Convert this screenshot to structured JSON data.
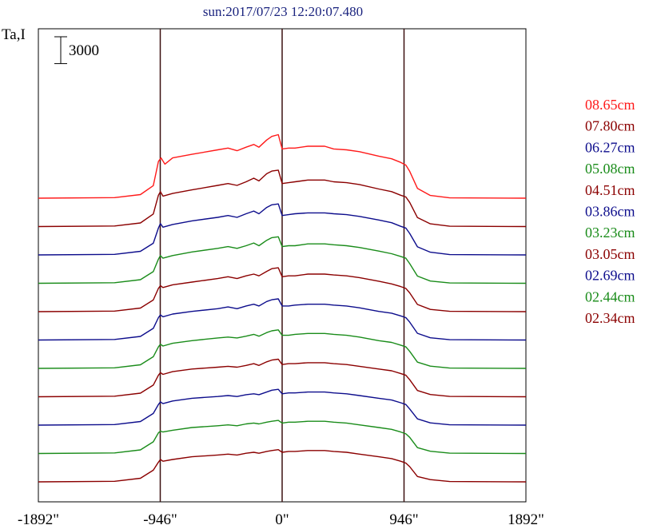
{
  "chart_data": {
    "type": "line",
    "title": "sun:2017/07/23 12:20:07.480",
    "ylabel": "Ta,I",
    "scale_bar_label": "3000",
    "scale_bar_value": 3000,
    "xlim": [
      -1892,
      1892
    ],
    "x_ticks": [
      {
        "value": -1892,
        "label": "-1892\""
      },
      {
        "value": -946,
        "label": "-946\""
      },
      {
        "value": 0,
        "label": "0\""
      },
      {
        "value": 946,
        "label": "946\""
      },
      {
        "value": 1892,
        "label": "1892\""
      }
    ],
    "vertical_lines": [
      -946,
      0,
      946
    ],
    "limb_x": 946,
    "grid": false,
    "legend_position": "right",
    "series": [
      {
        "name": "08.65cm",
        "color": "#ff1a1a",
        "baseline": 0,
        "profile_x": [
          -1892,
          -1300,
          -1100,
          -1000,
          -960,
          -940,
          -910,
          -850,
          -700,
          -500,
          -420,
          -350,
          -280,
          -220,
          -180,
          -120,
          -80,
          -30,
          0,
          50,
          100,
          200,
          330,
          400,
          500,
          600,
          750,
          850,
          920,
          960,
          990,
          1050,
          1150,
          1300,
          1892
        ],
        "profile_y": [
          0,
          60,
          400,
          1400,
          4100,
          4500,
          3800,
          4500,
          4900,
          5400,
          5600,
          5300,
          5700,
          6000,
          5700,
          6500,
          6900,
          7100,
          5500,
          5600,
          5600,
          5800,
          5800,
          5500,
          5400,
          5200,
          4700,
          4400,
          4000,
          3700,
          3000,
          1100,
          300,
          40,
          0
        ]
      },
      {
        "name": "07.80cm",
        "color": "#8b0000",
        "baseline": 1,
        "profile_x": [
          -1892,
          -1300,
          -1100,
          -1000,
          -960,
          -945,
          -925,
          -850,
          -700,
          -500,
          -420,
          -350,
          -280,
          -220,
          -180,
          -120,
          -80,
          -30,
          0,
          50,
          100,
          200,
          330,
          400,
          500,
          600,
          750,
          850,
          920,
          960,
          990,
          1050,
          1150,
          1300,
          1892
        ],
        "profile_y": [
          0,
          60,
          400,
          1400,
          3500,
          3900,
          3400,
          3700,
          4100,
          4600,
          4800,
          4600,
          5000,
          5400,
          5100,
          5900,
          6200,
          6300,
          4800,
          4900,
          5000,
          5200,
          5200,
          5000,
          4900,
          4700,
          4200,
          3900,
          3500,
          3300,
          2700,
          1000,
          300,
          40,
          0
        ]
      },
      {
        "name": "06.27cm",
        "color": "#0d0d8c",
        "baseline": 2,
        "profile_x": [
          -1892,
          -1300,
          -1100,
          -1000,
          -960,
          -945,
          -925,
          -850,
          -700,
          -500,
          -420,
          -350,
          -280,
          -220,
          -180,
          -120,
          -80,
          -30,
          0,
          50,
          100,
          200,
          330,
          400,
          500,
          600,
          750,
          850,
          920,
          960,
          990,
          1050,
          1150,
          1300,
          1892
        ],
        "profile_y": [
          0,
          60,
          400,
          1300,
          3000,
          3500,
          3100,
          3400,
          3800,
          4200,
          4400,
          4200,
          4600,
          4900,
          4600,
          5300,
          5600,
          5700,
          4400,
          4500,
          4600,
          4700,
          4700,
          4600,
          4500,
          4300,
          3900,
          3600,
          3200,
          3000,
          2400,
          900,
          300,
          40,
          0
        ]
      },
      {
        "name": "05.08cm",
        "color": "#1a8c1a",
        "baseline": 3,
        "profile_x": [
          -1892,
          -1300,
          -1100,
          -1000,
          -960,
          -945,
          -925,
          -850,
          -700,
          -500,
          -420,
          -350,
          -280,
          -220,
          -180,
          -120,
          -80,
          -30,
          0,
          50,
          100,
          200,
          330,
          400,
          500,
          600,
          750,
          850,
          920,
          960,
          990,
          1050,
          1150,
          1300,
          1892
        ],
        "profile_y": [
          0,
          60,
          400,
          1300,
          2700,
          3100,
          2800,
          3100,
          3500,
          3900,
          4100,
          3900,
          4200,
          4500,
          4200,
          4800,
          5100,
          5200,
          4100,
          4200,
          4200,
          4400,
          4400,
          4300,
          4200,
          4000,
          3600,
          3300,
          3000,
          2800,
          2200,
          800,
          250,
          40,
          0
        ]
      },
      {
        "name": "04.51cm",
        "color": "#8b0000",
        "baseline": 4,
        "profile_x": [
          -1892,
          -1300,
          -1100,
          -1000,
          -960,
          -945,
          -925,
          -850,
          -700,
          -500,
          -420,
          -350,
          -280,
          -220,
          -180,
          -120,
          -80,
          -30,
          0,
          50,
          100,
          200,
          330,
          400,
          500,
          600,
          750,
          850,
          920,
          960,
          990,
          1050,
          1150,
          1300,
          1892
        ],
        "profile_y": [
          0,
          60,
          400,
          1300,
          2600,
          2900,
          2700,
          3000,
          3300,
          3700,
          3900,
          3700,
          4000,
          4200,
          4000,
          4500,
          4800,
          4900,
          3900,
          4000,
          4000,
          4200,
          4200,
          4100,
          4000,
          3800,
          3400,
          3100,
          2800,
          2600,
          2100,
          800,
          250,
          40,
          0
        ]
      },
      {
        "name": "03.86cm",
        "color": "#0d0d8c",
        "baseline": 5,
        "profile_x": [
          -1892,
          -1300,
          -1100,
          -1000,
          -960,
          -945,
          -925,
          -850,
          -700,
          -500,
          -420,
          -350,
          -280,
          -220,
          -180,
          -120,
          -80,
          -30,
          0,
          50,
          100,
          200,
          330,
          400,
          500,
          600,
          750,
          850,
          920,
          960,
          990,
          1050,
          1150,
          1300,
          1892
        ],
        "profile_y": [
          0,
          60,
          400,
          1300,
          2500,
          2800,
          2600,
          2900,
          3200,
          3500,
          3700,
          3500,
          3800,
          4000,
          3800,
          4300,
          4500,
          4600,
          3800,
          3800,
          3900,
          4000,
          4000,
          3900,
          3800,
          3600,
          3200,
          3000,
          2700,
          2500,
          2000,
          750,
          250,
          40,
          0
        ]
      },
      {
        "name": "03.23cm",
        "color": "#1a8c1a",
        "baseline": 6,
        "profile_x": [
          -1892,
          -1300,
          -1100,
          -1000,
          -960,
          -945,
          -925,
          -850,
          -700,
          -500,
          -420,
          -350,
          -280,
          -220,
          -180,
          -120,
          -80,
          -30,
          0,
          50,
          100,
          200,
          330,
          400,
          500,
          600,
          750,
          850,
          920,
          960,
          990,
          1050,
          1150,
          1300,
          1892
        ],
        "profile_y": [
          0,
          60,
          400,
          1300,
          2400,
          2700,
          2500,
          2800,
          3100,
          3400,
          3500,
          3400,
          3600,
          3800,
          3600,
          4000,
          4200,
          4300,
          3700,
          3700,
          3800,
          3900,
          3900,
          3800,
          3700,
          3500,
          3100,
          2900,
          2600,
          2400,
          1900,
          700,
          250,
          40,
          0
        ]
      },
      {
        "name": "03.05cm",
        "color": "#8b0000",
        "baseline": 7,
        "profile_x": [
          -1892,
          -1300,
          -1100,
          -1000,
          -960,
          -945,
          -925,
          -850,
          -700,
          -500,
          -420,
          -350,
          -280,
          -220,
          -180,
          -120,
          -80,
          -30,
          0,
          50,
          100,
          200,
          330,
          400,
          500,
          600,
          750,
          850,
          920,
          960,
          990,
          1050,
          1150,
          1300,
          1892
        ],
        "profile_y": [
          0,
          60,
          400,
          1300,
          2400,
          2700,
          2500,
          2800,
          3100,
          3300,
          3400,
          3300,
          3500,
          3700,
          3500,
          3900,
          4100,
          4200,
          3600,
          3700,
          3700,
          3800,
          3800,
          3700,
          3600,
          3400,
          3100,
          2900,
          2600,
          2400,
          1900,
          700,
          250,
          40,
          0
        ]
      },
      {
        "name": "02.69cm",
        "color": "#0d0d8c",
        "baseline": 8,
        "profile_x": [
          -1892,
          -1300,
          -1100,
          -1000,
          -960,
          -945,
          -925,
          -850,
          -700,
          -500,
          -420,
          -350,
          -280,
          -220,
          -180,
          -120,
          -80,
          -30,
          0,
          50,
          100,
          200,
          330,
          400,
          500,
          600,
          750,
          850,
          920,
          960,
          990,
          1050,
          1150,
          1300,
          1892
        ],
        "profile_y": [
          0,
          60,
          400,
          1300,
          2300,
          2600,
          2400,
          2700,
          3000,
          3200,
          3300,
          3200,
          3400,
          3500,
          3400,
          3700,
          3900,
          4000,
          3500,
          3600,
          3600,
          3700,
          3700,
          3600,
          3500,
          3300,
          3000,
          2800,
          2500,
          2300,
          1800,
          700,
          250,
          40,
          0
        ]
      },
      {
        "name": "02.44cm",
        "color": "#1a8c1a",
        "baseline": 9,
        "profile_x": [
          -1892,
          -1300,
          -1100,
          -1000,
          -960,
          -945,
          -925,
          -850,
          -700,
          -500,
          -420,
          -350,
          -280,
          -220,
          -180,
          -120,
          -80,
          -30,
          0,
          50,
          100,
          200,
          330,
          400,
          500,
          600,
          750,
          850,
          920,
          960,
          990,
          1050,
          1150,
          1300,
          1892
        ],
        "profile_y": [
          0,
          60,
          400,
          1300,
          2300,
          2500,
          2400,
          2600,
          2900,
          3100,
          3200,
          3100,
          3300,
          3400,
          3300,
          3500,
          3600,
          3700,
          3400,
          3500,
          3500,
          3600,
          3600,
          3500,
          3400,
          3200,
          2900,
          2700,
          2400,
          2200,
          1800,
          650,
          250,
          40,
          0
        ]
      },
      {
        "name": "02.34cm",
        "color": "#8b0000",
        "baseline": 10,
        "profile_x": [
          -1892,
          -1300,
          -1100,
          -1000,
          -960,
          -945,
          -925,
          -850,
          -700,
          -500,
          -420,
          -350,
          -280,
          -220,
          -180,
          -120,
          -80,
          -30,
          0,
          50,
          100,
          200,
          330,
          400,
          500,
          600,
          750,
          850,
          920,
          960,
          990,
          1050,
          1150,
          1300,
          1892
        ],
        "profile_y": [
          0,
          60,
          400,
          1300,
          2200,
          2500,
          2300,
          2500,
          2800,
          3000,
          3100,
          3000,
          3200,
          3300,
          3200,
          3400,
          3500,
          3600,
          3300,
          3400,
          3400,
          3500,
          3500,
          3400,
          3300,
          3100,
          2800,
          2600,
          2300,
          2100,
          1700,
          600,
          250,
          40,
          0
        ]
      }
    ]
  }
}
